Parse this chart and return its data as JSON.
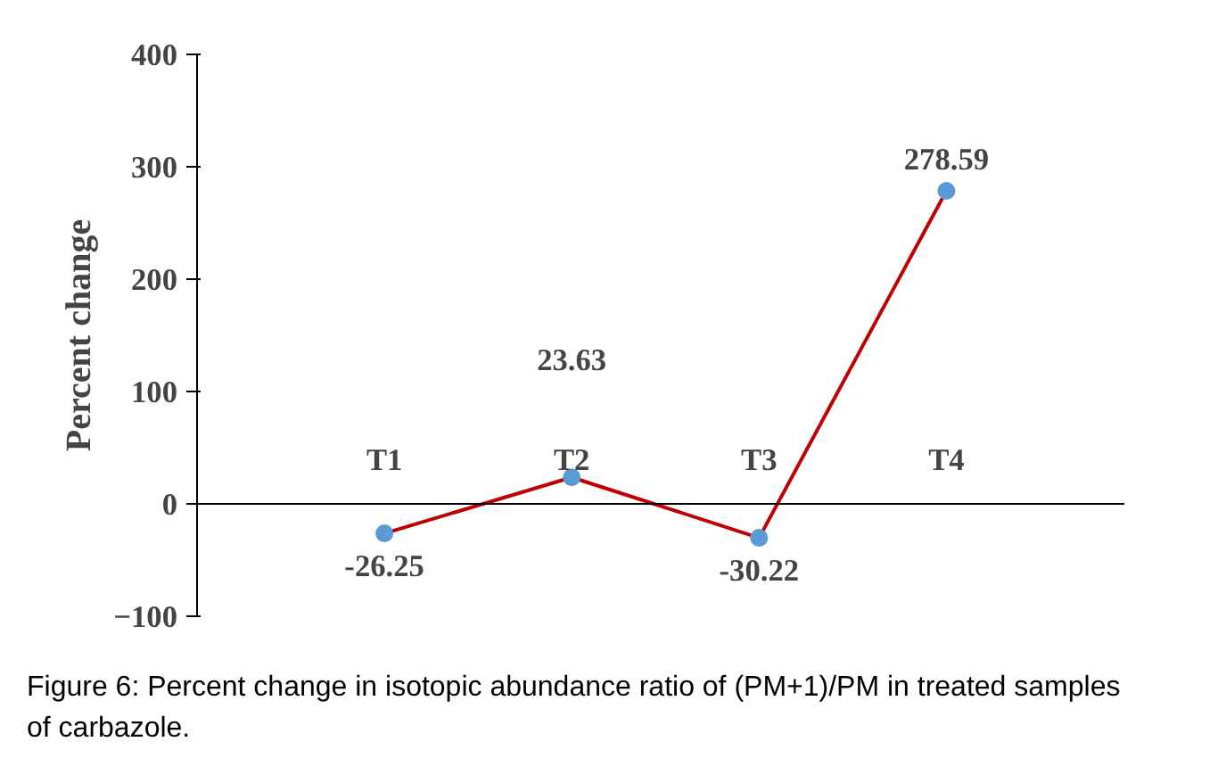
{
  "chart_data": {
    "type": "line",
    "categories": [
      "T1",
      "T2",
      "T3",
      "T4"
    ],
    "series": [
      {
        "color": "#c00000",
        "colors": [
          "#5b9bd5",
          "#5b9bd5",
          "#5b9bd5",
          "#5b9bd5"
        ],
        "values": [
          -26.25,
          23.63,
          -30.22,
          278.59
        ]
      }
    ],
    "marker": "circle",
    "data_labels": true,
    "ylabel": "Percent change",
    "ylim": [
      -100,
      400
    ],
    "yticks": [
      -100,
      0,
      100,
      200,
      300,
      400
    ],
    "annotations": [
      "Figure 6: Percent change in isotopic abundance ratio of (PM+1)/PM in treated samples of carbazole."
    ]
  }
}
